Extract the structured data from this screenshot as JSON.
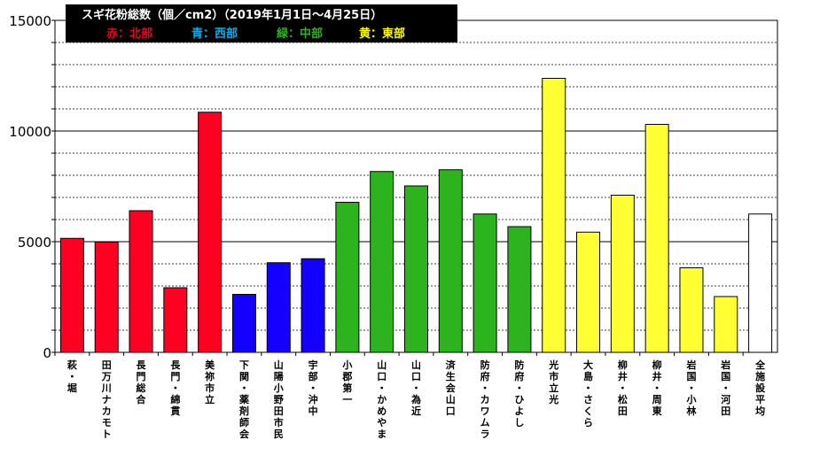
{
  "chart_data": {
    "type": "bar",
    "title": "スギ花粉総数（個／cm2）（2019年1月1日～4月25日）",
    "legend": [
      {
        "label": "赤：北部",
        "color": "#e8001e"
      },
      {
        "label": "青：西部",
        "color": "#00b0f0"
      },
      {
        "label": "緑：中部",
        "color": "#2db31d"
      },
      {
        "label": "黄：東部",
        "color": "#ffff00"
      }
    ],
    "categories": [
      "萩・堀",
      "田万川ナカモト",
      "長門総合",
      "長門・綿貫",
      "美祢市立",
      "下関・薬剤師会",
      "山陽小野田市民",
      "宇部・沖中",
      "小郡第一",
      "山口・かめやま",
      "山口・為近",
      "済生会山口",
      "防府・カワムラ",
      "防府・ひよし",
      "光市立光",
      "大島・さくら",
      "柳井・松田",
      "柳井・周東",
      "岩国・小林",
      "岩国・河田",
      "全施設平均"
    ],
    "values": [
      5150,
      4980,
      6400,
      2920,
      10850,
      2620,
      4050,
      4230,
      6780,
      8170,
      7520,
      8250,
      6250,
      5680,
      12380,
      5430,
      7100,
      10300,
      3820,
      2520,
      6250
    ],
    "bar_colors": [
      "#ff0022",
      "#ff0022",
      "#ff0022",
      "#ff0022",
      "#ff0022",
      "#1400ff",
      "#1400ff",
      "#1400ff",
      "#2db31d",
      "#2db31d",
      "#2db31d",
      "#2db31d",
      "#2db31d",
      "#2db31d",
      "#ffff33",
      "#ffff33",
      "#ffff33",
      "#ffff33",
      "#ffff33",
      "#ffff33",
      "#ffffff"
    ],
    "y_ticks": [
      "0",
      "5000",
      "10000",
      "15000"
    ],
    "ylim": [
      0,
      15000
    ],
    "grid": true
  }
}
